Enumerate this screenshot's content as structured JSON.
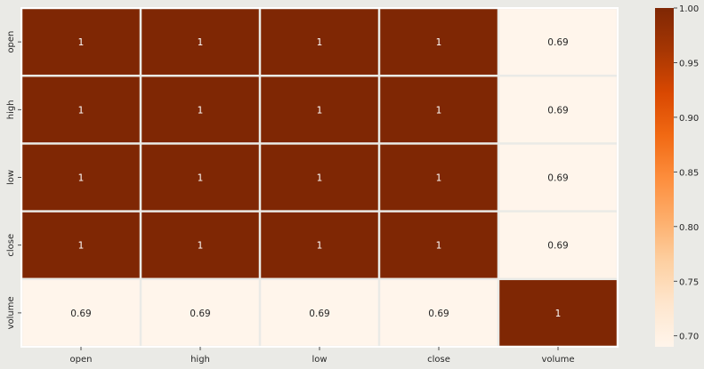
{
  "chart_data": {
    "type": "heatmap",
    "title": "",
    "xlabel": "",
    "ylabel": "",
    "x_categories": [
      "open",
      "high",
      "low",
      "close",
      "volume"
    ],
    "y_categories": [
      "open",
      "high",
      "low",
      "close",
      "volume"
    ],
    "values": [
      [
        1,
        1,
        1,
        1,
        0.69
      ],
      [
        1,
        1,
        1,
        1,
        0.69
      ],
      [
        1,
        1,
        1,
        1,
        0.69
      ],
      [
        1,
        1,
        1,
        1,
        0.69
      ],
      [
        0.69,
        0.69,
        0.69,
        0.69,
        1
      ]
    ],
    "annotations": [
      [
        "1",
        "1",
        "1",
        "1",
        "0.69"
      ],
      [
        "1",
        "1",
        "1",
        "1",
        "0.69"
      ],
      [
        "1",
        "1",
        "1",
        "1",
        "0.69"
      ],
      [
        "1",
        "1",
        "1",
        "1",
        "0.69"
      ],
      [
        "0.69",
        "0.69",
        "0.69",
        "0.69",
        "1"
      ]
    ],
    "colorbar": {
      "min": 0.69,
      "max": 1.0,
      "ticks": [
        0.7,
        0.75,
        0.8,
        0.85,
        0.9,
        0.95,
        1.0
      ],
      "tick_labels": [
        "0.70",
        "0.75",
        "0.80",
        "0.85",
        "0.90",
        "0.95",
        "1.00"
      ],
      "colormap": "Oranges",
      "stops": [
        "#fff5eb",
        "#fee6ce",
        "#fdd0a2",
        "#fdae6b",
        "#fd8d3c",
        "#f16913",
        "#d94801",
        "#a63603",
        "#7f2704"
      ]
    },
    "grid": false,
    "legend": "colorbar-right",
    "cell_separator_color": "#ffffff",
    "background_color": "#eaeae6"
  }
}
